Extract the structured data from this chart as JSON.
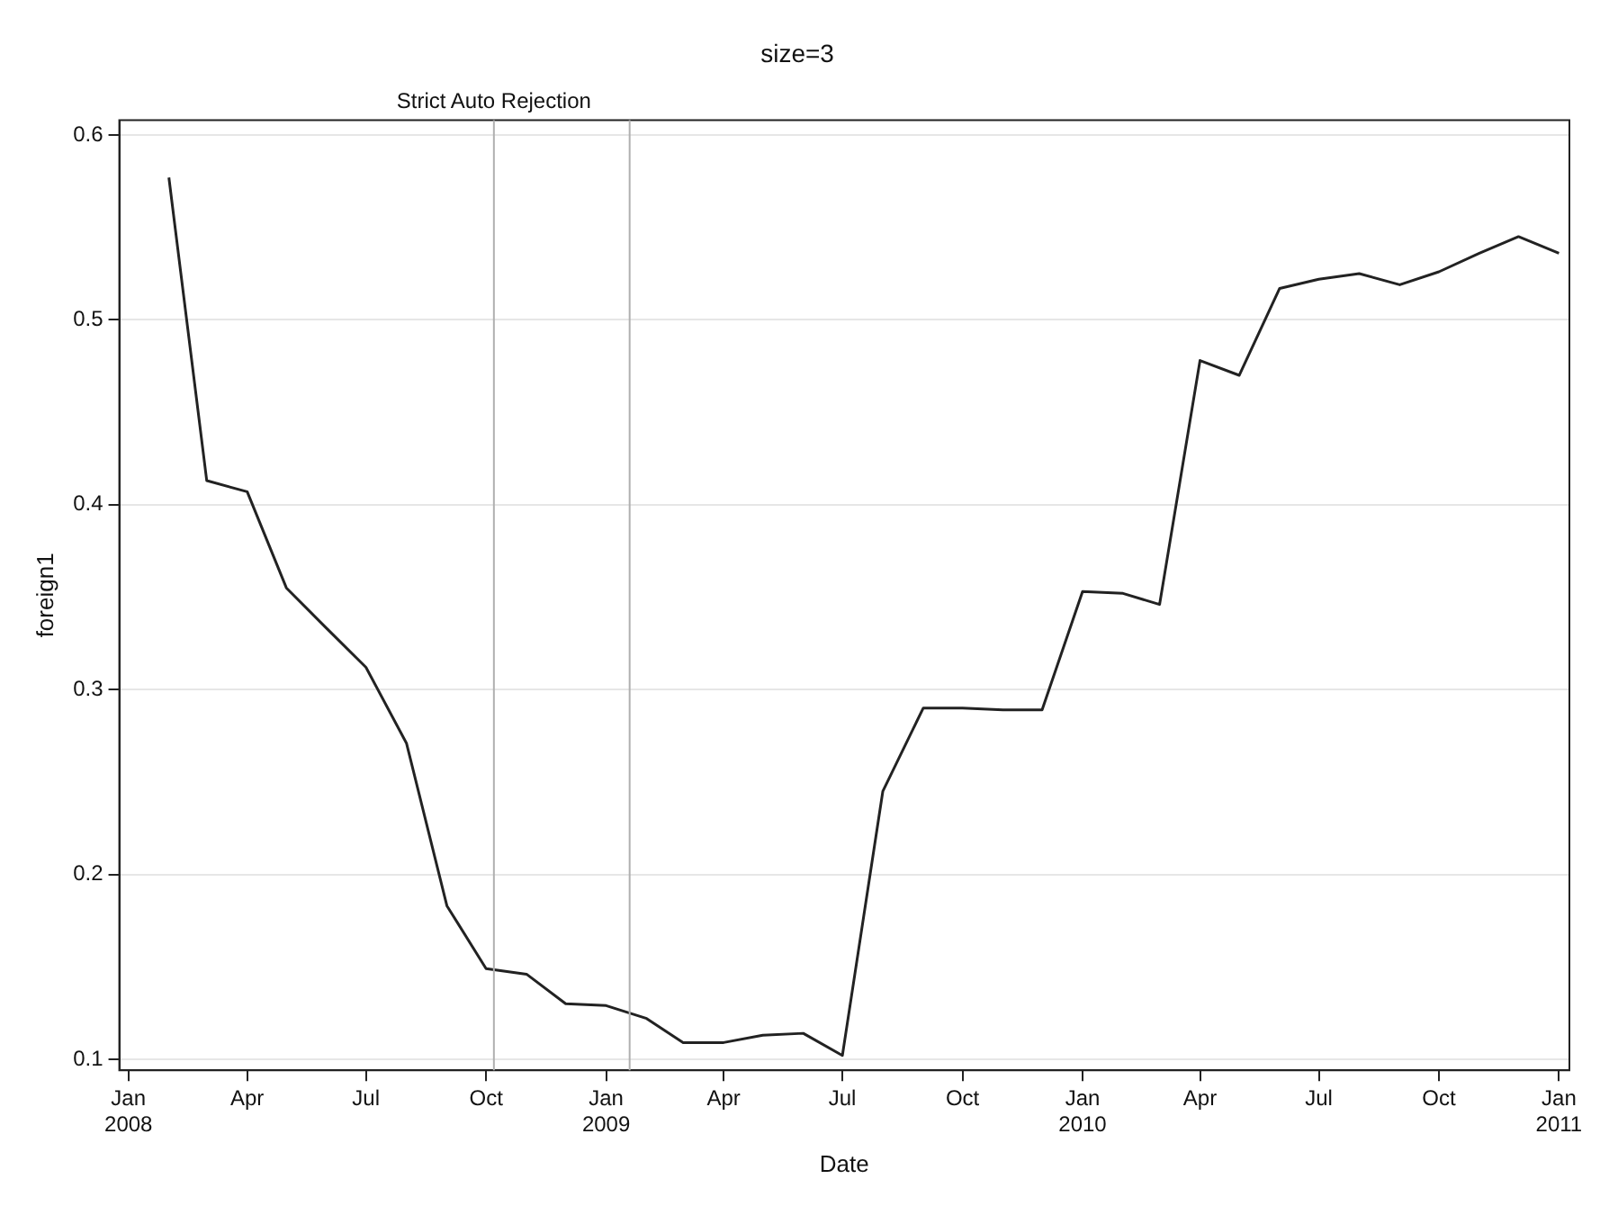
{
  "chart_data": {
    "type": "line",
    "title": "size=3",
    "xlabel": "Date",
    "ylabel": "foreign1",
    "x": [
      "2008-02",
      "2008-03",
      "2008-04",
      "2008-05",
      "2008-06",
      "2008-07",
      "2008-08",
      "2008-09",
      "2008-10",
      "2008-11",
      "2008-12",
      "2009-01",
      "2009-02",
      "2009-03",
      "2009-04",
      "2009-05",
      "2009-06",
      "2009-07",
      "2009-08",
      "2009-09",
      "2009-10",
      "2009-11",
      "2009-12",
      "2010-01",
      "2010-02",
      "2010-03",
      "2010-04",
      "2010-05",
      "2010-06",
      "2010-07",
      "2010-08",
      "2010-09",
      "2010-10",
      "2010-11",
      "2010-12",
      "2011-01"
    ],
    "series": [
      {
        "color": "#222222",
        "values": [
          0.577,
          0.413,
          0.407,
          0.355,
          0.333,
          0.312,
          0.271,
          0.183,
          0.149,
          0.146,
          0.13,
          0.129,
          0.122,
          0.109,
          0.109,
          0.113,
          0.114,
          0.102,
          0.245,
          0.29,
          0.29,
          0.289,
          0.289,
          0.353,
          0.352,
          0.346,
          0.478,
          0.47,
          0.517,
          0.522,
          0.525,
          0.519,
          0.526,
          0.536,
          0.545,
          0.536
        ]
      }
    ],
    "xlim": [
      "2007-12-25",
      "2011-01-09"
    ],
    "xticks": [
      {
        "value": "2008-01",
        "label": "Jan\n2008"
      },
      {
        "value": "2008-04",
        "label": "Apr"
      },
      {
        "value": "2008-07",
        "label": "Jul"
      },
      {
        "value": "2008-10",
        "label": "Oct"
      },
      {
        "value": "2009-01",
        "label": "Jan\n2009"
      },
      {
        "value": "2009-04",
        "label": "Apr"
      },
      {
        "value": "2009-07",
        "label": "Jul"
      },
      {
        "value": "2009-10",
        "label": "Oct"
      },
      {
        "value": "2010-01",
        "label": "Jan\n2010"
      },
      {
        "value": "2010-04",
        "label": "Apr"
      },
      {
        "value": "2010-07",
        "label": "Jul"
      },
      {
        "value": "2010-10",
        "label": "Oct"
      },
      {
        "value": "2011-01",
        "label": "Jan\n2011"
      }
    ],
    "ylim": [
      0.094,
      0.608
    ],
    "yticks": [
      0.1,
      0.2,
      0.3,
      0.4,
      0.5,
      0.6
    ],
    "ref_lines": [
      {
        "axis": "x",
        "value": "2008-10-07",
        "label": "Strict Auto Rejection",
        "color": "#b0b0b0"
      },
      {
        "axis": "x",
        "value": "2009-01-19",
        "label": null,
        "color": "#b0b0b0"
      }
    ],
    "grid": "y",
    "legend": false,
    "marker": "none",
    "line_style": "solid"
  }
}
